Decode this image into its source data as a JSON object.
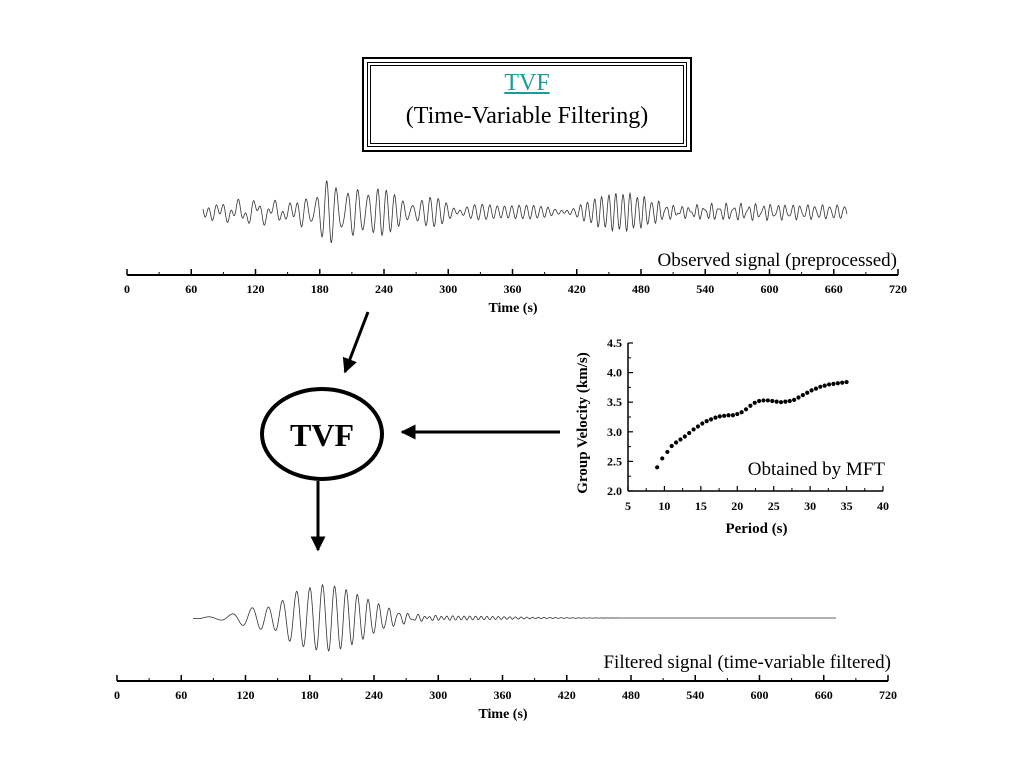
{
  "title": {
    "link_text": "TVF",
    "subtitle": "(Time-Variable Filtering)",
    "link_color": "#1a9c9c"
  },
  "process": {
    "label": "TVF"
  },
  "observed": {
    "caption": "Observed signal (preprocessed)",
    "axis": {
      "label": "Time (s)",
      "ticks": [
        "0",
        "60",
        "120",
        "180",
        "240",
        "300",
        "360",
        "420",
        "480",
        "540",
        "600",
        "660",
        "720"
      ]
    }
  },
  "filtered": {
    "caption": "Filtered signal (time-variable filtered)",
    "axis": {
      "label": "Time (s)",
      "ticks": [
        "0",
        "60",
        "120",
        "180",
        "240",
        "300",
        "360",
        "420",
        "480",
        "540",
        "600",
        "660",
        "720"
      ]
    }
  },
  "chart_data": {
    "type": "scatter",
    "annotation": "Obtained by MFT",
    "xlabel": "Period (s)",
    "ylabel": "Group Velocity (km/s)",
    "xlim": [
      5,
      40
    ],
    "ylim": [
      2.0,
      4.5
    ],
    "x_ticks": [
      "5",
      "10",
      "15",
      "20",
      "25",
      "30",
      "35",
      "40"
    ],
    "y_ticks": [
      "2.0",
      "2.5",
      "3.0",
      "3.5",
      "4.0",
      "4.5"
    ],
    "grid": false,
    "x": [
      9.0,
      9.7,
      10.4,
      11.0,
      11.6,
      12.2,
      12.8,
      13.4,
      14.0,
      14.6,
      15.2,
      15.8,
      16.4,
      17.0,
      17.6,
      18.2,
      18.8,
      19.4,
      20.0,
      20.6,
      21.2,
      21.8,
      22.4,
      23.0,
      23.6,
      24.2,
      24.8,
      25.4,
      26.0,
      26.6,
      27.2,
      27.8,
      28.4,
      29.0,
      29.6,
      30.2,
      30.8,
      31.4,
      32.0,
      32.6,
      33.2,
      33.8,
      34.4,
      35.0
    ],
    "y": [
      2.4,
      2.55,
      2.66,
      2.76,
      2.82,
      2.87,
      2.92,
      2.98,
      3.04,
      3.09,
      3.14,
      3.18,
      3.21,
      3.24,
      3.26,
      3.27,
      3.28,
      3.28,
      3.3,
      3.33,
      3.38,
      3.44,
      3.49,
      3.52,
      3.53,
      3.53,
      3.52,
      3.51,
      3.5,
      3.51,
      3.52,
      3.54,
      3.58,
      3.62,
      3.66,
      3.7,
      3.73,
      3.76,
      3.78,
      3.8,
      3.81,
      3.82,
      3.83,
      3.84
    ]
  }
}
